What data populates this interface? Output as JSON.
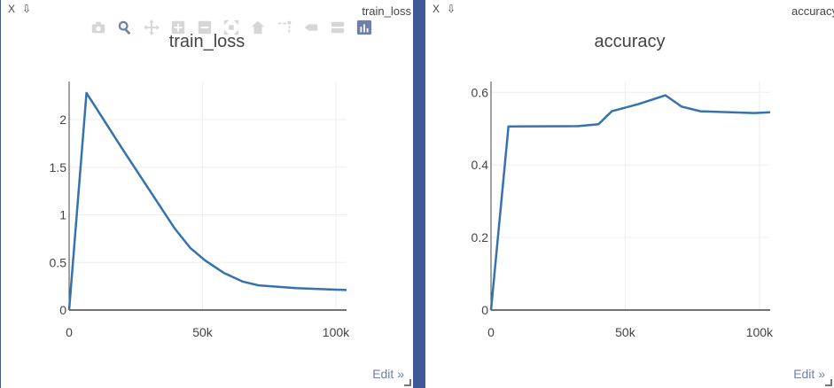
{
  "panes": [
    {
      "close_glyph": "X",
      "pin_glyph": "⇩",
      "name": "train_loss",
      "edit_label": "Edit »"
    },
    {
      "close_glyph": "X",
      "pin_glyph": "⇩",
      "name": "accuracy",
      "edit_label": "Edit »"
    }
  ],
  "modebar_icons": [
    "camera-icon",
    "zoom-icon",
    "pan-icon",
    "zoom-in-icon",
    "zoom-out-icon",
    "autoscale-icon",
    "reset-axes-icon",
    "spike-lines-icon",
    "hover-closest-icon",
    "hover-compare-icon",
    "plotly-logo-icon"
  ],
  "colors": {
    "line": "#3672ae",
    "divider": "#3f5a96",
    "link": "#6f7fa8"
  },
  "chart_data": [
    {
      "type": "line",
      "title": "train_loss",
      "x_ticks": [
        "0",
        "50k",
        "100k"
      ],
      "y_ticks": [
        "0",
        "0.5",
        "1",
        "1.5",
        "2"
      ],
      "xlim": [
        0,
        104000
      ],
      "ylim": [
        0,
        2.4
      ],
      "x": [
        0,
        6500,
        20000,
        39500,
        45500,
        51000,
        58000,
        65000,
        71000,
        85000,
        104000
      ],
      "y": [
        0.0,
        2.28,
        1.69,
        0.86,
        0.65,
        0.52,
        0.39,
        0.3,
        0.26,
        0.23,
        0.21
      ],
      "grid": true
    },
    {
      "type": "line",
      "title": "accuracy",
      "x_ticks": [
        "0",
        "50k",
        "100k"
      ],
      "y_ticks": [
        "0",
        "0.2",
        "0.4",
        "0.6"
      ],
      "xlim": [
        0,
        104000
      ],
      "ylim": [
        0,
        0.63
      ],
      "x": [
        0,
        6500,
        32500,
        40000,
        45000,
        55000,
        65000,
        71000,
        78000,
        98000,
        104000
      ],
      "y": [
        0.0,
        0.506,
        0.507,
        0.512,
        0.548,
        0.568,
        0.592,
        0.561,
        0.548,
        0.543,
        0.545
      ],
      "grid": true
    }
  ]
}
